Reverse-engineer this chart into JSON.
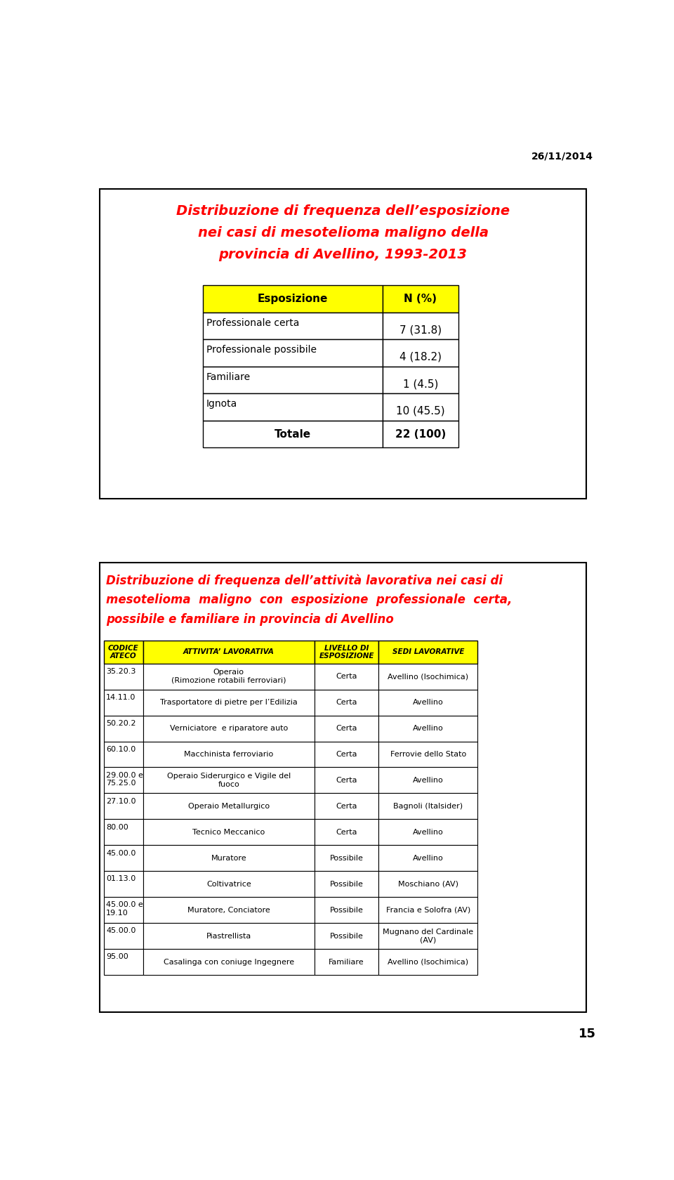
{
  "page_date": "26/11/2014",
  "page_number": "15",
  "bg_color": "#ffffff",
  "table1_title_line1": "Distribuzione di frequenza dell’esposizione",
  "table1_title_line2": "nei casi di mesotelioma maligno della",
  "table1_title_line3": "provincia di Avellino, 1993-2013",
  "table1_headers": [
    "Esposizione",
    "N (%)"
  ],
  "table1_rows": [
    [
      "Professionale certa",
      "7 (31.8)"
    ],
    [
      "Professionale possibile",
      "4 (18.2)"
    ],
    [
      "Familiare",
      "1 (4.5)"
    ],
    [
      "Ignota",
      "10 (45.5)"
    ],
    [
      "Totale",
      "22 (100)"
    ]
  ],
  "table2_title_line1": "Distribuzione di frequenza dell’attività lavorativa nei casi di",
  "table2_title_line2": "mesotelioma  maligno  con  esposizione  professionale  certa,",
  "table2_title_line3": "possibile e familiare in provincia di Avellino",
  "table2_headers": [
    "CODICE\nATECO",
    "ATTIVITA’ LAVORATIVA",
    "LIVELLO DI\nESPOSIZIONE",
    "SEDI LAVORATIVE"
  ],
  "table2_rows": [
    [
      "35.20.3",
      "Operaio\n(Rimozione rotabili ferroviari)",
      "Certa",
      "Avellino (Isochimica)"
    ],
    [
      "14.11.0",
      "Trasportatore di pietre per l’Edilizia",
      "Certa",
      "Avellino"
    ],
    [
      "50.20.2",
      "Verniciatore  e riparatore auto",
      "Certa",
      "Avellino"
    ],
    [
      "60.10.0",
      "Macchinista ferroviario",
      "Certa",
      "Ferrovie dello Stato"
    ],
    [
      "29.00.0 e\n75.25.0",
      "Operaio Siderurgico e Vigile del\nfuoco",
      "Certa",
      "Avellino"
    ],
    [
      "27.10.0",
      "Operaio Metallurgico",
      "Certa",
      "Bagnoli (Italsider)"
    ],
    [
      "80.00",
      "Tecnico Meccanico",
      "Certa",
      "Avellino"
    ],
    [
      "45.00.0",
      "Muratore",
      "Possibile",
      "Avellino"
    ],
    [
      "01.13.0",
      "Coltivatrice",
      "Possibile",
      "Moschiano (AV)"
    ],
    [
      "45.00.0 e\n19.10",
      "Muratore, Conciatore",
      "Possibile",
      "Francia e Solofra (AV)"
    ],
    [
      "45.00.0",
      "Piastrellista",
      "Possibile",
      "Mugnano del Cardinale\n(AV)"
    ],
    [
      "95.00",
      "Casalinga con coniuge Ingegnere",
      "Familiare",
      "Avellino (Isochimica)"
    ]
  ],
  "red_color": "#ff0000",
  "yellow_color": "#ffff00",
  "black_color": "#000000"
}
